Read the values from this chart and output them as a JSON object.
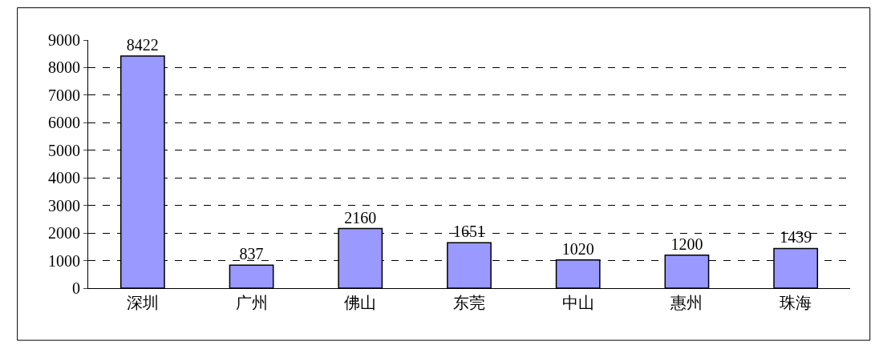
{
  "chart_data": {
    "type": "bar",
    "categories": [
      "深圳",
      "广州",
      "佛山",
      "东莞",
      "中山",
      "惠州",
      "珠海"
    ],
    "values": [
      8422,
      837,
      2160,
      1651,
      1020,
      1200,
      1439
    ],
    "color": "#9999ff",
    "ylim": [
      0,
      9000
    ],
    "yticks": [
      0,
      1000,
      2000,
      3000,
      4000,
      5000,
      6000,
      7000,
      8000,
      9000
    ],
    "grid": "y",
    "data_labels": true,
    "legend": false
  }
}
